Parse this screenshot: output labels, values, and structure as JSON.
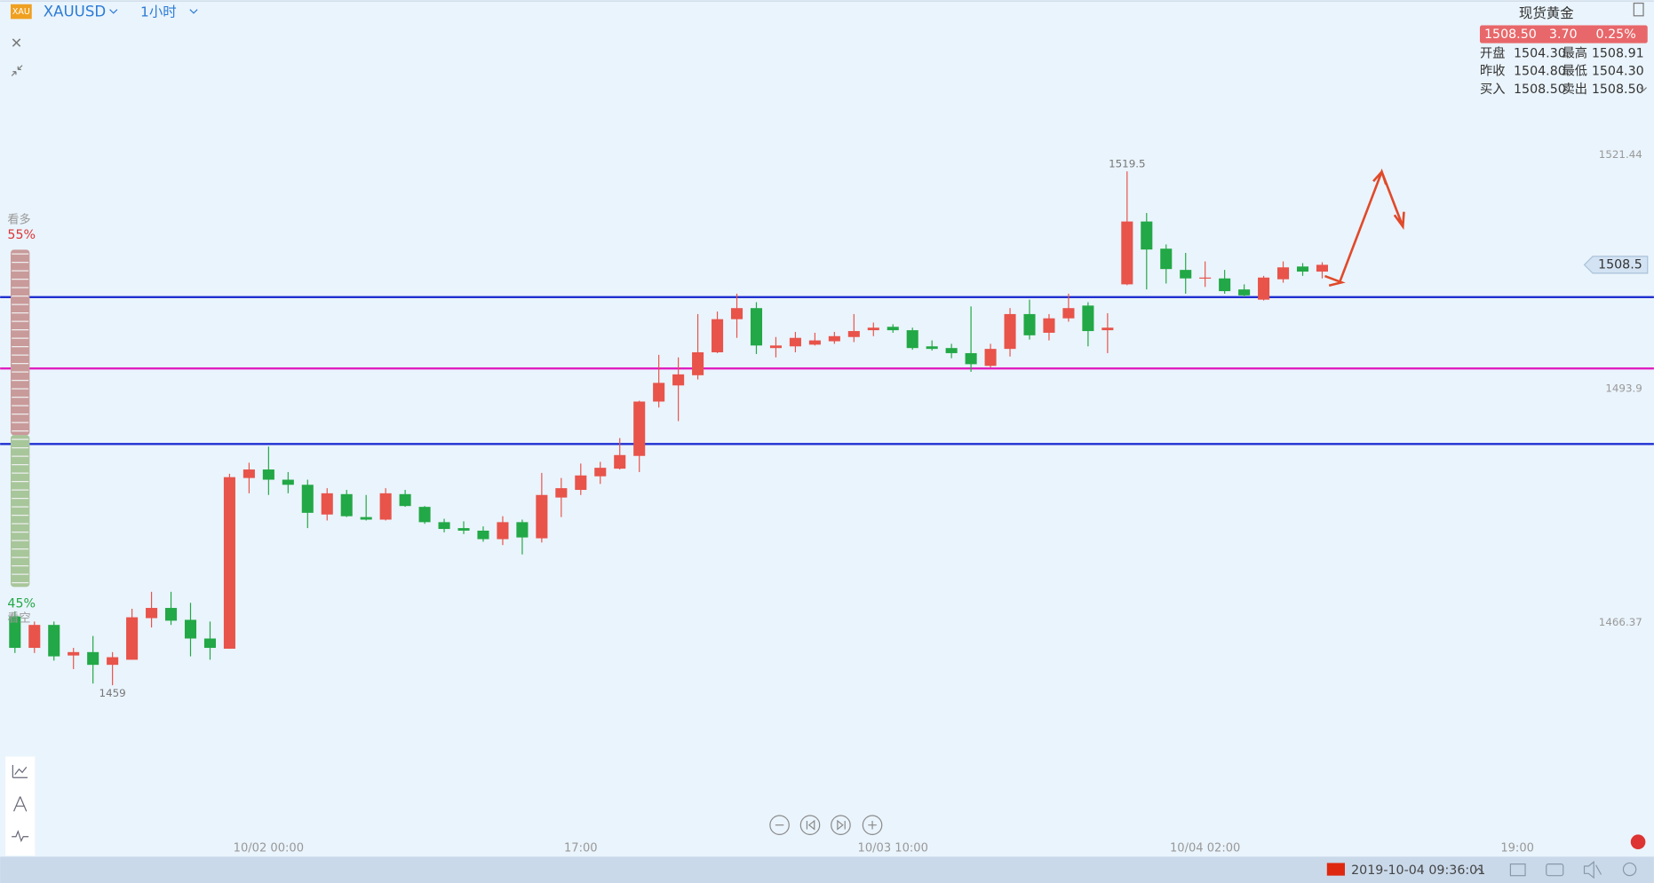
{
  "toolbar": {
    "icon": "XAU",
    "symbol": "XAUUSD",
    "interval": "1小时"
  },
  "quote": {
    "name": "现货黄金",
    "last": "1508.50",
    "change": "3.70",
    "change_pct": "0.25%",
    "rows": [
      [
        "开盘",
        "1504.30",
        "最高",
        "1508.91"
      ],
      [
        "昨收",
        "1504.80",
        "最低",
        "1504.30"
      ],
      [
        "买入",
        "1508.50",
        "卖出",
        "1508.50"
      ]
    ]
  },
  "sentiment": {
    "bull_label": "看多",
    "bull": {
      "value": 55,
      "label": "55%"
    },
    "bear_label": "看空",
    "bear": {
      "value": 45,
      "label": "45%"
    }
  },
  "status": {
    "datetime": "2019-10-04 09:36:01"
  },
  "chart_data": {
    "type": "candlestick",
    "up_color": "#e8534a",
    "down_color": "#22a846",
    "open": [
      1467.1,
      1463.4,
      1466.1,
      1462.5,
      1462.9,
      1461.4,
      1462.0,
      1466.9,
      1468.1,
      1466.7,
      1464.5,
      1463.3,
      1483.4,
      1484.4,
      1483.2,
      1482.6,
      1479.1,
      1481.5,
      1478.8,
      1478.5,
      1481.5,
      1480.0,
      1478.2,
      1477.5,
      1477.2,
      1476.2,
      1478.2,
      1476.3,
      1481.1,
      1482.0,
      1483.6,
      1484.5,
      1486.0,
      1492.4,
      1494.3,
      1495.5,
      1498.2,
      1502.1,
      1503.4,
      1498.7,
      1498.9,
      1499.1,
      1499.5,
      1500.0,
      1500.8,
      1501.2,
      1500.8,
      1498.9,
      1498.7,
      1498.1,
      1496.6,
      1498.6,
      1502.7,
      1500.5,
      1502.2,
      1503.7,
      1500.8,
      1506.2,
      1513.6,
      1510.4,
      1507.9,
      1506.9,
      1506.9,
      1505.6,
      1504.4,
      1506.8,
      1508.3,
      1507.7
    ],
    "high": [
      1467.7,
      1466.5,
      1466.5,
      1463.4,
      1464.8,
      1462.9,
      1468.0,
      1470.0,
      1470.0,
      1468.7,
      1466.5,
      1483.9,
      1485.2,
      1487.1,
      1484.1,
      1483.2,
      1482.2,
      1482.0,
      1481.4,
      1482.2,
      1482.0,
      1480.1,
      1478.6,
      1478.3,
      1477.7,
      1478.9,
      1478.5,
      1484.0,
      1483.4,
      1485.1,
      1485.3,
      1488.1,
      1492.5,
      1497.9,
      1497.6,
      1502.7,
      1503.0,
      1505.1,
      1504.1,
      1500.0,
      1500.6,
      1500.5,
      1500.6,
      1502.7,
      1501.7,
      1501.5,
      1501.1,
      1499.6,
      1499.2,
      1503.6,
      1499.2,
      1503.4,
      1504.4,
      1502.7,
      1505.1,
      1504.1,
      1502.8,
      1519.5,
      1514.6,
      1510.9,
      1509.9,
      1508.9,
      1507.9,
      1506.2,
      1507.2,
      1508.9,
      1508.7,
      1508.8
    ],
    "low": [
      1462.8,
      1462.8,
      1461.9,
      1460.9,
      1459.2,
      1459.0,
      1462.0,
      1465.8,
      1466.1,
      1462.4,
      1462.0,
      1463.3,
      1481.6,
      1481.4,
      1481.6,
      1477.5,
      1478.4,
      1478.8,
      1478.4,
      1478.4,
      1480.0,
      1478.0,
      1477.0,
      1476.8,
      1475.9,
      1475.5,
      1474.4,
      1475.8,
      1478.8,
      1481.4,
      1482.7,
      1484.4,
      1484.1,
      1491.7,
      1490.1,
      1495.0,
      1498.1,
      1499.9,
      1498.0,
      1497.6,
      1498.2,
      1499.0,
      1499.2,
      1499.4,
      1500.1,
      1500.5,
      1498.5,
      1498.4,
      1497.5,
      1495.9,
      1496.4,
      1497.7,
      1499.7,
      1499.6,
      1501.8,
      1498.9,
      1498.1,
      1506.1,
      1505.6,
      1506.3,
      1505.1,
      1505.9,
      1505.1,
      1504.7,
      1504.3,
      1506.4,
      1507.2,
      1506.9
    ],
    "close": [
      1463.4,
      1466.1,
      1462.4,
      1462.9,
      1461.4,
      1462.3,
      1467.0,
      1468.1,
      1466.6,
      1464.5,
      1463.4,
      1483.5,
      1484.4,
      1483.2,
      1482.6,
      1479.3,
      1481.6,
      1478.9,
      1478.5,
      1481.6,
      1480.1,
      1478.2,
      1477.4,
      1477.2,
      1476.2,
      1478.2,
      1476.4,
      1481.4,
      1482.2,
      1483.7,
      1484.6,
      1486.1,
      1492.4,
      1494.6,
      1495.6,
      1498.2,
      1502.1,
      1503.4,
      1499.0,
      1499.0,
      1499.9,
      1499.6,
      1500.1,
      1500.7,
      1501.1,
      1500.8,
      1498.7,
      1498.6,
      1498.1,
      1496.8,
      1498.6,
      1502.7,
      1500.2,
      1502.2,
      1503.4,
      1500.7,
      1501.1,
      1513.6,
      1510.3,
      1508.0,
      1506.9,
      1507.0,
      1505.4,
      1504.9,
      1507.0,
      1508.2,
      1507.7,
      1508.5
    ],
    "xlim": [
      -0.76,
      84
    ],
    "ylim": [
      1440.8,
      1539.68
    ],
    "xticks": [
      {
        "value": 13,
        "label": "10/02 00:00"
      },
      {
        "value": 29,
        "label": "17:00"
      },
      {
        "value": 45,
        "label": "10/03 10:00"
      },
      {
        "value": 61,
        "label": "10/04 02:00"
      },
      {
        "value": 77,
        "label": "19:00"
      }
    ],
    "yticks": [
      1466.37,
      1493.9,
      1521.44
    ],
    "hlines": [
      {
        "value": 1504.7,
        "color": "#1f2fd0"
      },
      {
        "value": 1496.3,
        "color": "#e020c0"
      },
      {
        "value": 1487.4,
        "color": "#1f2fd0"
      }
    ],
    "last_price": 1508.5,
    "high_label": "1519.5",
    "low_label": "1459"
  }
}
